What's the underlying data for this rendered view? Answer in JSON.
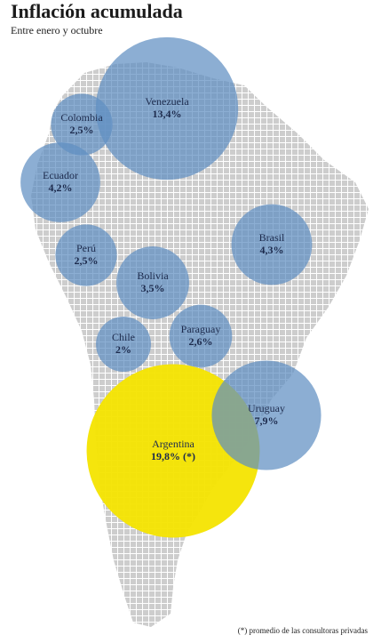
{
  "chart_data": {
    "type": "bubble_map",
    "title": "Inflación acumulada",
    "subtitle": "Entre enero y octubre",
    "categories": [
      "Venezuela",
      "Colombia",
      "Ecuador",
      "Perú",
      "Bolivia",
      "Brasil",
      "Paraguay",
      "Chile",
      "Argentina",
      "Uruguay"
    ],
    "values": [
      13.4,
      2.5,
      4.2,
      2.5,
      3.5,
      4.3,
      2.6,
      2,
      19.8,
      7.9
    ],
    "value_labels": [
      "13,4%",
      "2,5%",
      "4,2%",
      "2,5%",
      "3,5%",
      "4,3%",
      "2,6%",
      "2%",
      "19,8% (*)",
      "7,9%"
    ],
    "colors": [
      "#5f8fc2",
      "#5f8fc2",
      "#5f8fc2",
      "#5f8fc2",
      "#5f8fc2",
      "#5f8fc2",
      "#5f8fc2",
      "#5f8fc2",
      "#f4e400",
      "#5f8fc2"
    ],
    "footnote": "(*) promedio de las consultoras privadas"
  }
}
